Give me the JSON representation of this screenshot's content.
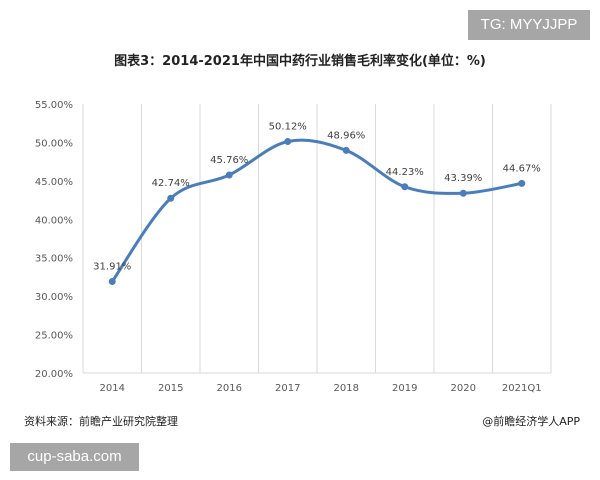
{
  "watermark_top": "TG: MYYJJPP",
  "watermark_bottom": "cup-saba.com",
  "source": "资料来源：前瞻产业研究院整理",
  "credit": "@前瞻经济学人APP",
  "colors": {
    "line": "#4a7ebb",
    "grid": "#d9d9d9",
    "text": "#595959"
  },
  "chart_data": {
    "type": "line",
    "title": "图表3：2014-2021年中国中药行业销售毛利率变化(单位：%)",
    "categories": [
      "2014",
      "2015",
      "2016",
      "2017",
      "2018",
      "2019",
      "2020",
      "2021Q1"
    ],
    "series": [
      {
        "values": [
          31.91,
          42.74,
          45.76,
          50.12,
          48.96,
          44.23,
          43.39,
          44.67
        ]
      }
    ],
    "data_labels": [
      "31.91%",
      "42.74%",
      "45.76%",
      "50.12%",
      "48.96%",
      "44.23%",
      "43.39%",
      "44.67%"
    ],
    "yticks": [
      "20.00%",
      "25.00%",
      "30.00%",
      "35.00%",
      "40.00%",
      "45.00%",
      "50.00%",
      "55.00%"
    ],
    "ylim": [
      20,
      55
    ],
    "smooth": true,
    "grid": "vertical"
  }
}
